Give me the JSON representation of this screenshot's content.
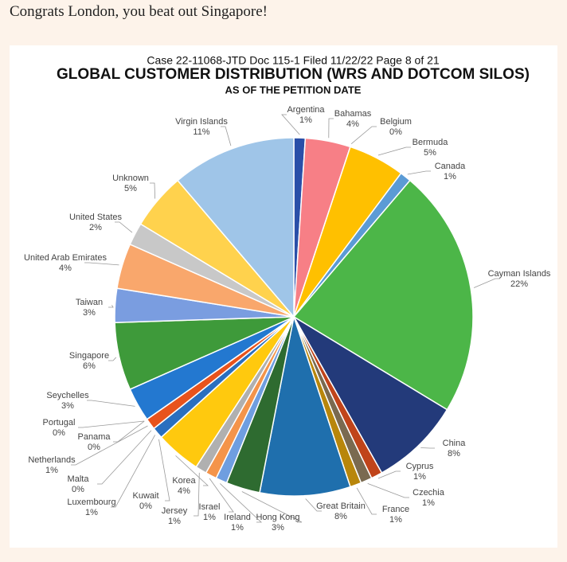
{
  "post": {
    "text": "Congrats London, you beat out Singapore!"
  },
  "chart_data": {
    "type": "pie",
    "header": "Case 22-11068-JTD   Doc 115-1   Filed 11/22/22   Page 8 of 21",
    "title": "GLOBAL CUSTOMER DISTRIBUTION (WRS AND DOTCOM SILOS)",
    "subtitle": "AS OF THE PETITION DATE",
    "categories": [
      "Argentina",
      "Bahamas",
      "Belgium",
      "Bermuda",
      "Canada",
      "Cayman Islands",
      "China",
      "Cyprus",
      "Czechia",
      "France",
      "Great Britain",
      "Hong Kong",
      "Ireland",
      "Israel",
      "Jersey",
      "Korea",
      "Kuwait",
      "Luxembourg",
      "Malta",
      "Netherlands",
      "Panama",
      "Portugal",
      "Seychelles",
      "Singapore",
      "Taiwan",
      "United Arab Emirates",
      "United States",
      "Unknown",
      "Virgin Islands"
    ],
    "values": [
      1,
      4,
      0,
      5,
      1,
      22,
      8,
      1,
      1,
      1,
      8,
      3,
      1,
      1,
      1,
      4,
      0,
      1,
      0,
      1,
      0,
      0,
      3,
      6,
      3,
      4,
      2,
      5,
      11
    ],
    "value_labels": [
      "1%",
      "4%",
      "0%",
      "5%",
      "1%",
      "22%",
      "8%",
      "1%",
      "1%",
      "1%",
      "8%",
      "3%",
      "1%",
      "1%",
      "1%",
      "4%",
      "0%",
      "1%",
      "0%",
      "1%",
      "0%",
      "0%",
      "3%",
      "6%",
      "3%",
      "4%",
      "2%",
      "5%",
      "11%"
    ],
    "colors": [
      "#2a4fa8",
      "#f77f86",
      "#f2a93b",
      "#ffc000",
      "#5b9bd5",
      "#4cb648",
      "#233a7a",
      "#c0441a",
      "#7a6a50",
      "#b8860b",
      "#1f6fad",
      "#2e6b30",
      "#6f9ee0",
      "#f4944a",
      "#b0b0b0",
      "#ffc90e",
      "#3a8f3a",
      "#2a6fbf",
      "#2b7ad0",
      "#e8531c",
      "#c8a030",
      "#f5c242",
      "#2378d0",
      "#3e9a3a",
      "#7a9de0",
      "#f9a76c",
      "#c8c8c8",
      "#ffd24d",
      "#9fc5e8"
    ]
  }
}
